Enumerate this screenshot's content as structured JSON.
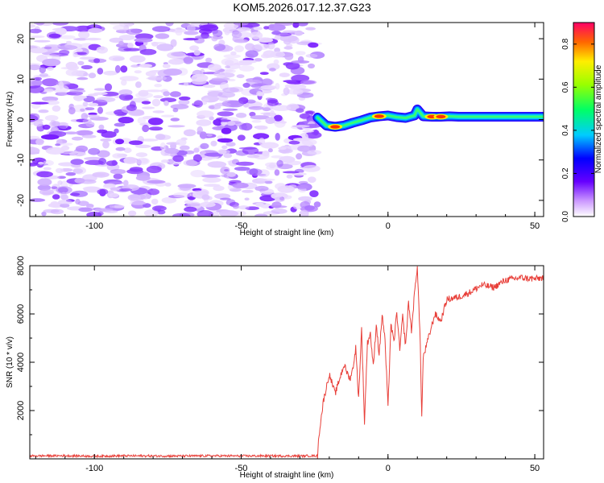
{
  "title": "KOM5.2026.017.12.37.G23",
  "chart_data": [
    {
      "type": "heatmap",
      "name": "spectrogram",
      "xlabel": "Height of straight line (km)",
      "ylabel": "Frequency (Hz)",
      "xlim": [
        -122,
        53
      ],
      "ylim": [
        -24,
        24
      ],
      "xticks": [
        -100,
        -50,
        0,
        50
      ],
      "yticks": [
        -20,
        -10,
        0,
        10,
        20
      ],
      "noise_region": [
        -122,
        -24
      ],
      "signal_start": -24,
      "signal_track": {
        "x": [
          -24,
          -21,
          -18,
          -15,
          -12,
          -9,
          -6,
          -3,
          0,
          3,
          6,
          9,
          10,
          12,
          15,
          18,
          21,
          24,
          30,
          40,
          53
        ],
        "freq": [
          0.5,
          -1.5,
          -1.8,
          -1.5,
          -0.8,
          -0.2,
          0.5,
          0.8,
          1.0,
          0.6,
          0.4,
          1.0,
          2.5,
          0.8,
          0.7,
          0.7,
          0.8,
          0.7,
          0.7,
          0.7,
          0.7
        ]
      },
      "hotspots": [
        {
          "x": -18,
          "freq": -1.8,
          "amp": 0.85
        },
        {
          "x": -3,
          "freq": 0.8,
          "amp": 0.85
        },
        {
          "x": 15,
          "freq": 0.7,
          "amp": 0.85
        },
        {
          "x": 18,
          "freq": 0.7,
          "amp": 0.85
        }
      ],
      "colorbar": {
        "label": "Normalized spectral amplitude",
        "range": [
          0,
          0.9
        ],
        "ticks": [
          "0.0",
          "0.2",
          "0.4",
          "0.6",
          "0.8"
        ]
      }
    },
    {
      "type": "line",
      "name": "snr",
      "xlabel": "Height of straight line (km)",
      "ylabel": "SNR (10 * v/v)",
      "xlim": [
        -122,
        53
      ],
      "ylim": [
        0,
        8000
      ],
      "xticks": [
        -100,
        -50,
        0,
        50
      ],
      "yticks": [
        2000,
        4000,
        6000,
        8000
      ],
      "series": [
        {
          "name": "SNR",
          "color": "#e8403a",
          "x": [
            -122,
            -110,
            -100,
            -90,
            -80,
            -70,
            -60,
            -50,
            -40,
            -30,
            -24,
            -23.5,
            -22,
            -20,
            -18,
            -17,
            -15,
            -13,
            -12,
            -11,
            -10,
            -9,
            -8,
            -7,
            -6,
            -5,
            -4,
            -3,
            -2,
            -1,
            0,
            1,
            2,
            3,
            4,
            5,
            6,
            7,
            8,
            9,
            10,
            11,
            11.5,
            12,
            14,
            16,
            18,
            20,
            24,
            28,
            32,
            36,
            40,
            45,
            50,
            53
          ],
          "y": [
            120,
            130,
            110,
            125,
            120,
            118,
            125,
            120,
            122,
            118,
            130,
            1000,
            2400,
            3500,
            2700,
            3100,
            3900,
            3300,
            3700,
            4600,
            2500,
            5400,
            1500,
            4800,
            5200,
            3800,
            5600,
            4300,
            6000,
            4900,
            2100,
            5600,
            4800,
            6100,
            4500,
            5900,
            4700,
            6500,
            5300,
            6800,
            8000,
            4700,
            1700,
            4200,
            5100,
            6000,
            5700,
            6600,
            6700,
            6900,
            7200,
            7100,
            7400,
            7500,
            7450,
            7500
          ]
        }
      ]
    }
  ]
}
